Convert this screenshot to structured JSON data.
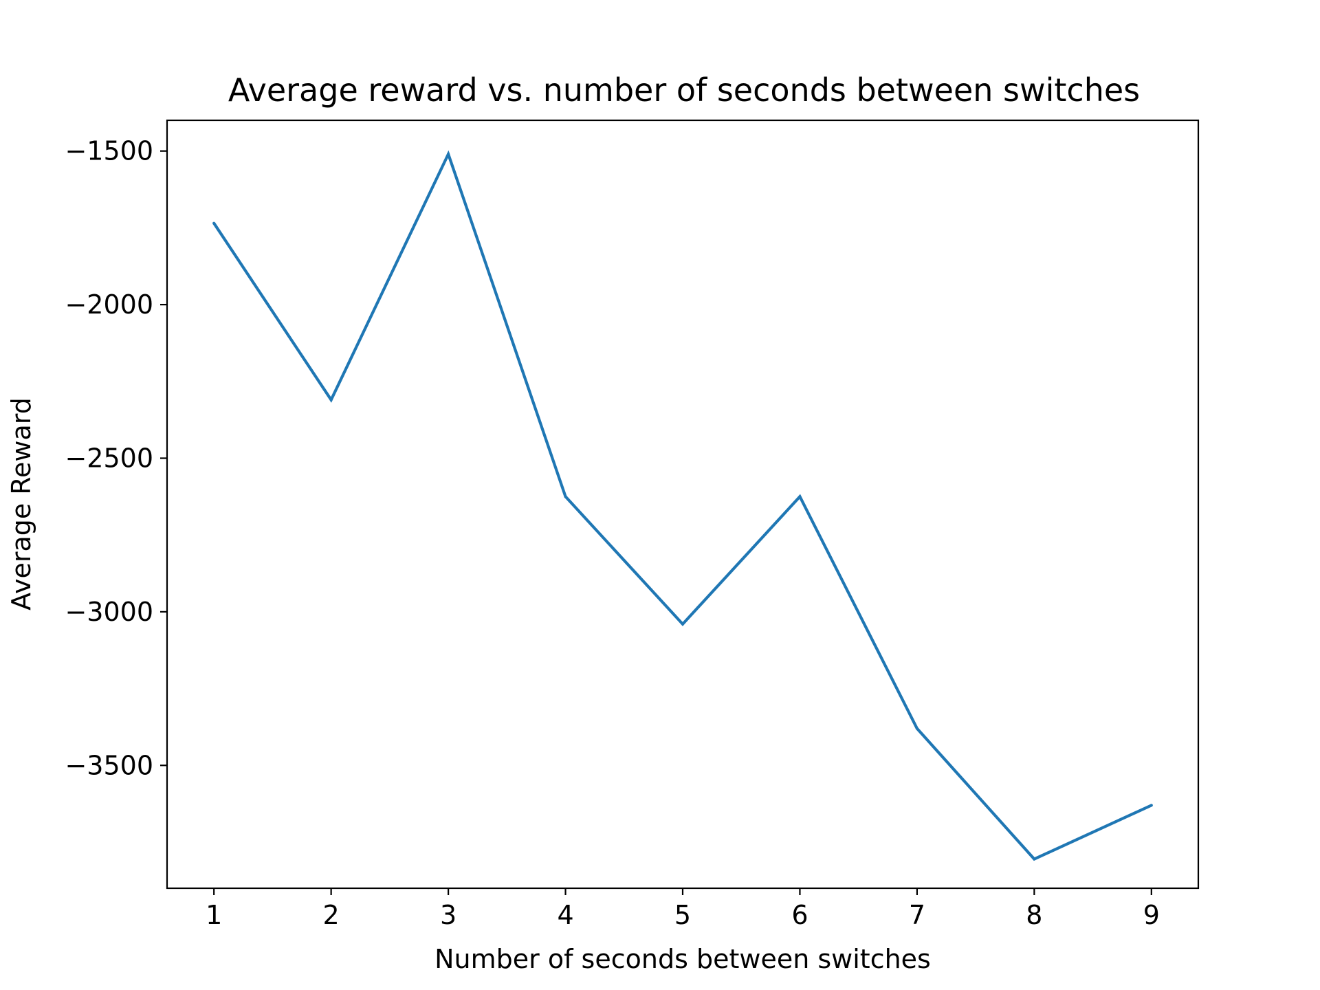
{
  "chart_data": {
    "type": "line",
    "title": "Average reward vs. number of seconds between switches",
    "xlabel": "Number of seconds between switches",
    "ylabel": "Average Reward",
    "x": [
      1,
      2,
      3,
      4,
      5,
      6,
      7,
      8,
      9
    ],
    "series": [
      {
        "values": [
          -1735,
          -2310,
          -1510,
          -2625,
          -3040,
          -2625,
          -3380,
          -3805,
          -3630
        ],
        "color": "#1f77b4"
      }
    ],
    "xlim": [
      0.6,
      9.4
    ],
    "ylim": [
      -3900,
      -1400
    ],
    "xticks": [
      1,
      2,
      3,
      4,
      5,
      6,
      7,
      8,
      9
    ],
    "yticks": [
      -1500,
      -2000,
      -2500,
      -3000,
      -3500
    ],
    "xtick_labels": [
      "1",
      "2",
      "3",
      "4",
      "5",
      "6",
      "7",
      "8",
      "9"
    ],
    "ytick_labels": [
      "−1500",
      "−2000",
      "−2500",
      "−3000",
      "−3500"
    ],
    "grid": false,
    "legend": "none"
  }
}
